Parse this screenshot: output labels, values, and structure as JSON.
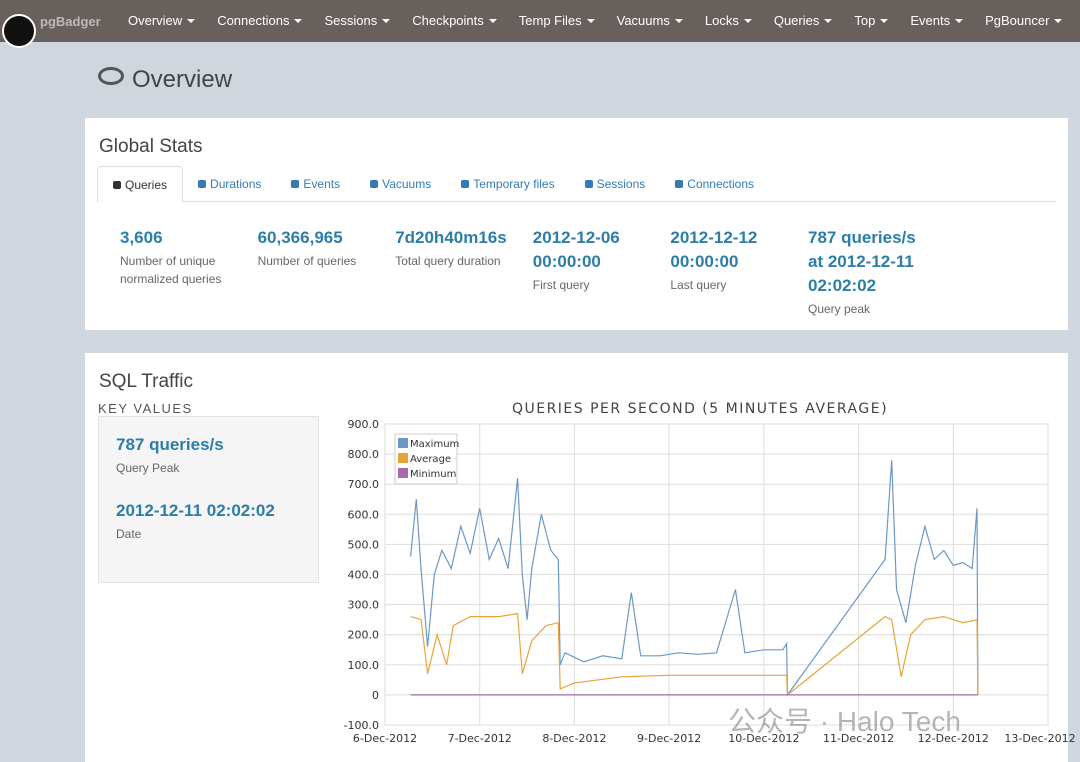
{
  "navbar": {
    "brand": "pgBadger",
    "items": [
      "Overview",
      "Connections",
      "Sessions",
      "Checkpoints",
      "Temp Files",
      "Vacuums",
      "Locks",
      "Queries",
      "Top",
      "Events",
      "PgBouncer"
    ]
  },
  "page_title": "Overview",
  "global_stats": {
    "title": "Global Stats",
    "tabs": [
      "Queries",
      "Durations",
      "Events",
      "Vacuums",
      "Temporary files",
      "Sessions",
      "Connections"
    ],
    "stats": [
      {
        "value": "3,606",
        "label": "Number of unique normalized queries"
      },
      {
        "value": "60,366,965",
        "label": "Number of queries"
      },
      {
        "value": "7d20h40m16s",
        "label": "Total query duration"
      },
      {
        "value": "2012-12-06 00:00:00",
        "label": "First query"
      },
      {
        "value": "2012-12-12 00:00:00",
        "label": "Last query"
      },
      {
        "value": "787 queries/s at 2012-12-11 02:02:02",
        "label": "Query peak"
      }
    ]
  },
  "sql_traffic": {
    "title": "SQL Traffic",
    "key_values_title": "KEY VALUES",
    "key_values": [
      {
        "value": "787 queries/s",
        "label": "Query Peak"
      },
      {
        "value": "2012-12-11 02:02:02",
        "label": "Date"
      }
    ]
  },
  "chart_data": {
    "type": "line",
    "title": "QUERIES PER SECOND (5 MINUTES AVERAGE)",
    "xlim": [
      6,
      13
    ],
    "xticks": [
      {
        "value": 6,
        "label": "6-Dec-2012"
      },
      {
        "value": 7,
        "label": "7-Dec-2012"
      },
      {
        "value": 8,
        "label": "8-Dec-2012"
      },
      {
        "value": 9,
        "label": "9-Dec-2012"
      },
      {
        "value": 10,
        "label": "10-Dec-2012"
      },
      {
        "value": 11,
        "label": "11-Dec-2012"
      },
      {
        "value": 12,
        "label": "12-Dec-2012"
      },
      {
        "value": 13,
        "label": "13-Dec-2012"
      }
    ],
    "ylim": [
      -100,
      900
    ],
    "yticks": [
      {
        "value": -100,
        "label": "-100.0"
      },
      {
        "value": 0,
        "label": "0"
      },
      {
        "value": 100,
        "label": "100.0"
      },
      {
        "value": 200,
        "label": "200.0"
      },
      {
        "value": 300,
        "label": "300.0"
      },
      {
        "value": 400,
        "label": "400.0"
      },
      {
        "value": 500,
        "label": "500.0"
      },
      {
        "value": 600,
        "label": "600.0"
      },
      {
        "value": 700,
        "label": "700.0"
      },
      {
        "value": 800,
        "label": "800.0"
      },
      {
        "value": 900,
        "label": "900.0"
      }
    ],
    "grid": true,
    "legend": "top-left",
    "series": [
      {
        "name": "Maximum",
        "color": "#6b98c6",
        "x": [
          6.27,
          6.33,
          6.38,
          6.45,
          6.52,
          6.6,
          6.7,
          6.8,
          6.9,
          7.0,
          7.1,
          7.2,
          7.3,
          7.4,
          7.45,
          7.5,
          7.55,
          7.65,
          7.75,
          7.83,
          7.85,
          7.9,
          8.1,
          8.3,
          8.5,
          8.6,
          8.7,
          8.9,
          9.1,
          9.3,
          9.5,
          9.7,
          9.8,
          10.0,
          10.2,
          10.24,
          10.25,
          11.28,
          11.35,
          11.4,
          11.5,
          11.6,
          11.7,
          11.8,
          11.9,
          12.0,
          12.1,
          12.2,
          12.25,
          12.26
        ],
        "values": [
          460,
          650,
          420,
          160,
          400,
          480,
          420,
          560,
          470,
          620,
          450,
          520,
          420,
          720,
          400,
          250,
          420,
          600,
          480,
          450,
          100,
          140,
          110,
          130,
          120,
          340,
          130,
          130,
          140,
          135,
          140,
          350,
          140,
          150,
          150,
          170,
          0,
          450,
          780,
          350,
          240,
          430,
          560,
          450,
          480,
          430,
          440,
          420,
          620,
          0
        ]
      },
      {
        "name": "Average",
        "color": "#e8a33d",
        "x": [
          6.27,
          6.38,
          6.45,
          6.55,
          6.65,
          6.72,
          6.9,
          7.2,
          7.4,
          7.45,
          7.55,
          7.7,
          7.83,
          7.85,
          8.0,
          8.5,
          9.0,
          10.0,
          10.24,
          10.25,
          11.28,
          11.35,
          11.45,
          11.55,
          11.7,
          11.9,
          12.1,
          12.25,
          12.26
        ],
        "values": [
          260,
          250,
          70,
          200,
          100,
          230,
          260,
          260,
          270,
          70,
          180,
          230,
          240,
          20,
          40,
          60,
          65,
          65,
          65,
          0,
          260,
          250,
          60,
          200,
          250,
          260,
          240,
          250,
          0
        ]
      },
      {
        "name": "Minimum",
        "color": "#a86aa8",
        "x": [
          6.27,
          12.26
        ],
        "values": [
          0,
          0
        ]
      }
    ]
  },
  "watermark": "公众号 · Halo Tech"
}
